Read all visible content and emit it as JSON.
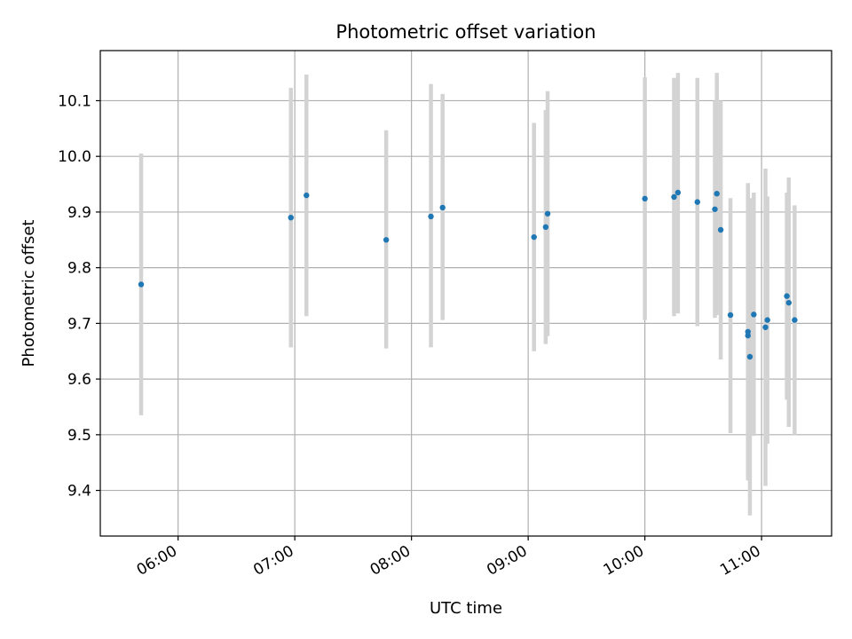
{
  "chart_data": {
    "type": "scatter",
    "title": "Photometric offset variation",
    "xlabel": "UTC time",
    "ylabel": "Photometric offset",
    "xlim": [
      "05:20",
      "11:36"
    ],
    "ylim": [
      9.318,
      10.19
    ],
    "x_ticks": [
      "06:00",
      "07:00",
      "08:00",
      "09:00",
      "10:00",
      "11:00"
    ],
    "y_ticks": [
      9.4,
      9.5,
      9.6,
      9.7,
      9.8,
      9.9,
      10.0,
      10.1
    ],
    "grid": true,
    "series": [
      {
        "marker_color": "#1f77b4",
        "errorbar_color": "#d3d3d3",
        "points": [
          {
            "t": "05:41",
            "y": 9.77,
            "lo": 9.535,
            "hi": 10.005
          },
          {
            "t": "06:58",
            "y": 9.89,
            "lo": 9.657,
            "hi": 10.123
          },
          {
            "t": "07:06",
            "y": 9.93,
            "lo": 9.713,
            "hi": 10.147
          },
          {
            "t": "07:47",
            "y": 9.85,
            "lo": 9.655,
            "hi": 10.047
          },
          {
            "t": "08:10",
            "y": 9.892,
            "lo": 9.657,
            "hi": 10.13
          },
          {
            "t": "08:16",
            "y": 9.908,
            "lo": 9.706,
            "hi": 10.112
          },
          {
            "t": "09:03",
            "y": 9.855,
            "lo": 9.65,
            "hi": 10.06
          },
          {
            "t": "09:09",
            "y": 9.873,
            "lo": 9.663,
            "hi": 10.083
          },
          {
            "t": "09:10",
            "y": 9.897,
            "lo": 9.677,
            "hi": 10.117
          },
          {
            "t": "10:00",
            "y": 9.924,
            "lo": 9.706,
            "hi": 10.142
          },
          {
            "t": "10:15",
            "y": 9.927,
            "lo": 9.713,
            "hi": 10.141
          },
          {
            "t": "10:17",
            "y": 9.935,
            "lo": 9.718,
            "hi": 10.15
          },
          {
            "t": "10:27",
            "y": 9.918,
            "lo": 9.695,
            "hi": 10.141
          },
          {
            "t": "10:36",
            "y": 9.905,
            "lo": 9.71,
            "hi": 10.1
          },
          {
            "t": "10:37",
            "y": 9.933,
            "lo": 9.715,
            "hi": 10.15
          },
          {
            "t": "10:39",
            "y": 9.868,
            "lo": 9.635,
            "hi": 10.1
          },
          {
            "t": "10:44",
            "y": 9.715,
            "lo": 9.503,
            "hi": 9.925
          },
          {
            "t": "10:53",
            "y": 9.685,
            "lo": 9.418,
            "hi": 9.952
          },
          {
            "t": "10:53",
            "y": 9.678,
            "lo": 9.432,
            "hi": 9.924
          },
          {
            "t": "10:54",
            "y": 9.64,
            "lo": 9.355,
            "hi": 9.925
          },
          {
            "t": "10:56",
            "y": 9.716,
            "lo": 9.498,
            "hi": 9.935
          },
          {
            "t": "11:02",
            "y": 9.693,
            "lo": 9.408,
            "hi": 9.978
          },
          {
            "t": "11:03",
            "y": 9.706,
            "lo": 9.484,
            "hi": 9.928
          },
          {
            "t": "11:13",
            "y": 9.749,
            "lo": 9.563,
            "hi": 9.935
          },
          {
            "t": "11:14",
            "y": 9.737,
            "lo": 9.514,
            "hi": 9.962
          },
          {
            "t": "11:17",
            "y": 9.706,
            "lo": 9.5,
            "hi": 9.912
          }
        ]
      }
    ]
  }
}
